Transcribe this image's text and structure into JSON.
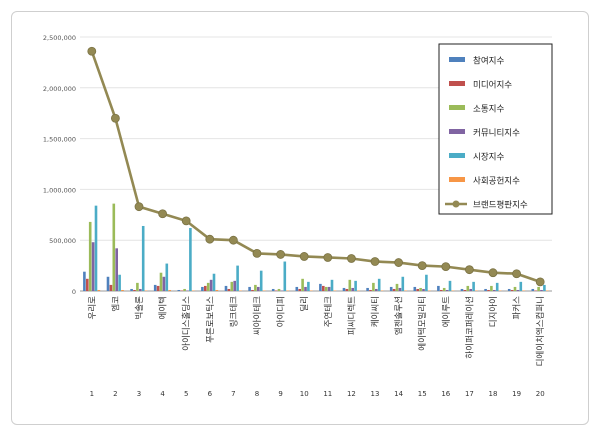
{
  "chart_data": {
    "type": "bar",
    "ylim": [
      0,
      2500000
    ],
    "yticks": [
      "0",
      "500,000",
      "1,000,000",
      "1,500,000",
      "2,000,000",
      "2,500,000"
    ],
    "grid": true,
    "legend_position": "top-right",
    "categories": [
      "우리로",
      "엠코",
      "빅솔론",
      "에이텍",
      "아이디스홀딩스",
      "푸른로보틱스",
      "링크테크",
      "씨아이테크",
      "아이디피",
      "딜리",
      "주연테크",
      "피씨디렉트",
      "케이씨티",
      "엠젠솔루션",
      "에이텍모빌리티",
      "에이루트",
      "하이퍼코퍼레이션",
      "디지아이",
      "파커스",
      "디에이치엑스컴퍼니"
    ],
    "ranks": [
      "1",
      "2",
      "3",
      "4",
      "5",
      "6",
      "7",
      "8",
      "9",
      "10",
      "11",
      "12",
      "13",
      "14",
      "15",
      "16",
      "17",
      "18",
      "19",
      "20"
    ],
    "series": [
      {
        "name": "참여지수",
        "color": "#4f81bd",
        "values": [
          190000,
          140000,
          20000,
          60000,
          10000,
          40000,
          50000,
          40000,
          20000,
          40000,
          70000,
          30000,
          30000,
          40000,
          40000,
          50000,
          20000,
          20000,
          20000,
          20000
        ]
      },
      {
        "name": "미디어지수",
        "color": "#c0504d",
        "values": [
          120000,
          60000,
          10000,
          50000,
          5000,
          50000,
          20000,
          10000,
          5000,
          20000,
          50000,
          20000,
          10000,
          20000,
          20000,
          10000,
          10000,
          10000,
          10000,
          5000
        ]
      },
      {
        "name": "소통지수",
        "color": "#9bbb59",
        "values": [
          680000,
          860000,
          80000,
          180000,
          20000,
          80000,
          90000,
          60000,
          20000,
          120000,
          40000,
          110000,
          80000,
          70000,
          30000,
          30000,
          50000,
          50000,
          40000,
          40000
        ]
      },
      {
        "name": "커뮤니티지수",
        "color": "#8064a2",
        "values": [
          480000,
          420000,
          20000,
          140000,
          5000,
          110000,
          100000,
          40000,
          5000,
          40000,
          40000,
          30000,
          20000,
          30000,
          20000,
          10000,
          20000,
          10000,
          10000,
          10000
        ]
      },
      {
        "name": "시장지수",
        "color": "#4bacc6",
        "values": [
          840000,
          160000,
          640000,
          270000,
          620000,
          170000,
          250000,
          200000,
          290000,
          90000,
          110000,
          100000,
          120000,
          140000,
          160000,
          100000,
          90000,
          80000,
          90000,
          60000
        ]
      },
      {
        "name": "사회공헌지수",
        "color": "#f79646",
        "values": [
          10000,
          10000,
          5000,
          10000,
          5000,
          10000,
          5000,
          5000,
          5000,
          5000,
          5000,
          5000,
          5000,
          5000,
          5000,
          5000,
          5000,
          5000,
          5000,
          5000
        ]
      }
    ],
    "line_series": {
      "name": "브랜드평판지수",
      "color": "#938953",
      "values": [
        2360000,
        1700000,
        830000,
        760000,
        690000,
        510000,
        500000,
        370000,
        360000,
        340000,
        330000,
        320000,
        290000,
        280000,
        250000,
        240000,
        210000,
        180000,
        170000,
        90000
      ]
    }
  }
}
